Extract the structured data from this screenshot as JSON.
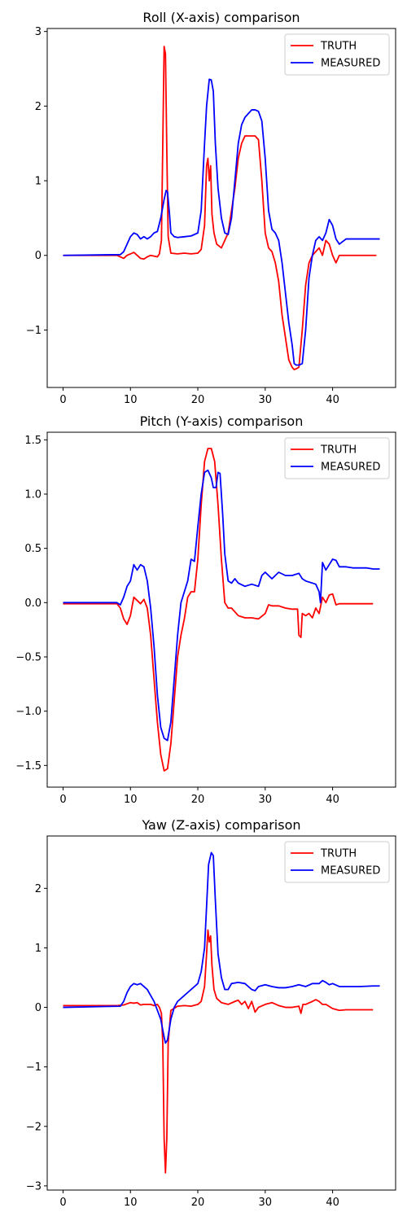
{
  "chart_data": [
    {
      "type": "line",
      "title": "Roll (X-axis) comparison",
      "xlabel": "",
      "ylabel": "",
      "xlim": [
        -2.35,
        49.35
      ],
      "ylim": [
        -1.77,
        3.04
      ],
      "xticks": [
        0,
        10,
        20,
        30,
        40
      ],
      "yticks": [
        -1,
        0,
        1,
        2,
        3
      ],
      "xtick_labels": [
        "0",
        "10",
        "20",
        "30",
        "40"
      ],
      "ytick_labels": [
        "−1",
        "0",
        "1",
        "2",
        "3"
      ],
      "legend_position": "top-right",
      "series": [
        {
          "name": "TRUTH",
          "color": "#ff0000",
          "x": [
            0,
            8,
            8.5,
            9,
            9.5,
            10,
            10.5,
            11,
            11.5,
            12,
            12.5,
            13,
            13.5,
            14,
            14.3,
            14.6,
            14.8,
            15.0,
            15.2,
            15.4,
            15.6,
            16,
            17,
            18,
            19,
            20,
            20.5,
            21,
            21.3,
            21.5,
            21.7,
            21.9,
            22.1,
            22.4,
            22.8,
            23.5,
            24.5,
            25.5,
            26.0,
            26.5,
            27.0,
            27.5,
            28,
            28.5,
            29,
            29.5,
            30,
            30.5,
            31,
            31.5,
            32,
            32.5,
            33,
            33.5,
            34,
            34.3,
            34.6,
            35,
            35.5,
            36,
            36.5,
            37,
            37.5,
            38,
            38.5,
            39,
            39.5,
            40,
            40.5,
            41,
            42,
            43,
            44,
            45,
            46,
            46.5
          ],
          "y": [
            0.0,
            0.0,
            -0.02,
            -0.04,
            0.0,
            0.02,
            0.04,
            0.0,
            -0.04,
            -0.05,
            -0.02,
            0.0,
            -0.01,
            -0.02,
            0.02,
            0.2,
            1.5,
            2.8,
            2.7,
            1.4,
            0.25,
            0.03,
            0.02,
            0.03,
            0.02,
            0.03,
            0.08,
            0.4,
            1.2,
            1.3,
            1.0,
            1.2,
            0.55,
            0.3,
            0.15,
            0.1,
            0.3,
            0.9,
            1.3,
            1.5,
            1.6,
            1.6,
            1.6,
            1.6,
            1.55,
            1.0,
            0.3,
            0.1,
            0.05,
            -0.1,
            -0.35,
            -0.8,
            -1.1,
            -1.4,
            -1.5,
            -1.53,
            -1.52,
            -1.5,
            -1.0,
            -0.4,
            -0.1,
            0.0,
            0.05,
            0.1,
            0.0,
            0.2,
            0.15,
            0.0,
            -0.1,
            0.0,
            0.0,
            0.0,
            0.0,
            0.0,
            0.0,
            0.0
          ]
        },
        {
          "name": "MEASURED",
          "color": "#0000ff",
          "x": [
            0,
            8.5,
            9,
            9.5,
            10,
            10.5,
            11,
            11.5,
            12,
            12.5,
            13,
            13.5,
            14,
            14.5,
            15,
            15.3,
            15.5,
            15.8,
            16,
            16.5,
            17,
            18,
            19,
            20,
            20.5,
            21,
            21.3,
            21.7,
            22.0,
            22.3,
            22.6,
            23,
            23.5,
            24,
            24.5,
            25,
            25.5,
            26,
            26.5,
            27,
            27.5,
            28,
            28.5,
            29,
            29.5,
            30,
            30.5,
            31,
            31.5,
            32,
            32.5,
            33,
            33.5,
            34,
            34.3,
            34.6,
            35,
            35.5,
            36,
            36.5,
            37,
            37.5,
            38,
            38.5,
            39,
            39.5,
            40,
            40.5,
            41,
            42,
            44,
            46,
            47
          ],
          "y": [
            0.0,
            0.01,
            0.05,
            0.15,
            0.25,
            0.3,
            0.28,
            0.22,
            0.25,
            0.22,
            0.25,
            0.3,
            0.32,
            0.5,
            0.75,
            0.87,
            0.85,
            0.55,
            0.3,
            0.25,
            0.24,
            0.25,
            0.26,
            0.3,
            0.6,
            1.5,
            2.0,
            2.36,
            2.35,
            2.2,
            1.5,
            0.9,
            0.5,
            0.3,
            0.28,
            0.5,
            1.0,
            1.5,
            1.75,
            1.85,
            1.9,
            1.95,
            1.95,
            1.93,
            1.8,
            1.3,
            0.6,
            0.35,
            0.3,
            0.2,
            -0.1,
            -0.5,
            -0.9,
            -1.2,
            -1.45,
            -1.47,
            -1.47,
            -1.45,
            -1.0,
            -0.3,
            0.0,
            0.2,
            0.25,
            0.2,
            0.3,
            0.48,
            0.4,
            0.22,
            0.15,
            0.22,
            0.22,
            0.22,
            0.22
          ]
        }
      ]
    },
    {
      "type": "line",
      "title": "Pitch (Y-axis) comparison",
      "xlabel": "",
      "ylabel": "",
      "xlim": [
        -2.35,
        49.35
      ],
      "ylim": [
        -1.7,
        1.57
      ],
      "xticks": [
        0,
        10,
        20,
        30,
        40
      ],
      "yticks": [
        -1.5,
        -1.0,
        -0.5,
        0.0,
        0.5,
        1.0,
        1.5
      ],
      "xtick_labels": [
        "0",
        "10",
        "20",
        "30",
        "40"
      ],
      "ytick_labels": [
        "−1.5",
        "−1.0",
        "−0.5",
        "0.0",
        "0.5",
        "1.0",
        "1.5"
      ],
      "legend_position": "top-right",
      "series": [
        {
          "name": "TRUTH",
          "color": "#ff0000",
          "x": [
            0,
            8,
            8.5,
            9,
            9.5,
            10,
            10.5,
            11,
            11.5,
            12,
            12.5,
            13,
            13.5,
            14,
            14.5,
            15,
            15.5,
            16,
            16.5,
            17,
            17.5,
            18,
            18.5,
            19,
            19.5,
            20,
            20.5,
            21,
            21.5,
            22,
            22.5,
            23,
            23.5,
            24,
            24.5,
            25,
            26,
            27,
            28,
            29,
            30,
            30.5,
            31,
            32,
            33,
            34,
            34.8,
            35.0,
            35.3,
            35.5,
            36,
            36.5,
            37,
            37.5,
            38,
            38.5,
            39,
            39.5,
            40,
            40.5,
            41,
            42,
            43,
            44,
            45,
            46
          ],
          "y": [
            -0.01,
            -0.01,
            -0.05,
            -0.15,
            -0.2,
            -0.12,
            0.05,
            0.02,
            -0.01,
            0.03,
            -0.05,
            -0.3,
            -0.7,
            -1.1,
            -1.4,
            -1.55,
            -1.53,
            -1.3,
            -0.9,
            -0.5,
            -0.3,
            -0.15,
            0.05,
            0.1,
            0.1,
            0.4,
            0.9,
            1.3,
            1.42,
            1.42,
            1.3,
            0.9,
            0.4,
            0.0,
            -0.05,
            -0.05,
            -0.12,
            -0.14,
            -0.14,
            -0.15,
            -0.1,
            -0.02,
            -0.03,
            -0.03,
            -0.05,
            -0.06,
            -0.06,
            -0.3,
            -0.32,
            -0.1,
            -0.12,
            -0.1,
            -0.14,
            -0.05,
            -0.1,
            0.05,
            0.0,
            0.07,
            0.08,
            -0.02,
            -0.01,
            -0.01,
            -0.01,
            -0.01,
            -0.01,
            -0.01
          ]
        },
        {
          "name": "MEASURED",
          "color": "#0000ff",
          "x": [
            0,
            8,
            8.5,
            9,
            9.5,
            10,
            10.5,
            11,
            11.5,
            12,
            12.5,
            13,
            13.5,
            14,
            14.5,
            15,
            15.5,
            16,
            16.5,
            17,
            17.5,
            18,
            18.5,
            19,
            19.5,
            20,
            20.5,
            21,
            21.5,
            22,
            22.3,
            22.7,
            23,
            23.3,
            23.7,
            24,
            24.5,
            25,
            25.5,
            26,
            27,
            28,
            29,
            29.5,
            30,
            31,
            32,
            33,
            34,
            35,
            35.5,
            36,
            37,
            37.5,
            38,
            38.2,
            38.5,
            39,
            39.5,
            40,
            40.5,
            41,
            42,
            43,
            44,
            45,
            46,
            47
          ],
          "y": [
            0.0,
            0.0,
            -0.02,
            0.05,
            0.15,
            0.2,
            0.35,
            0.3,
            0.35,
            0.33,
            0.2,
            -0.05,
            -0.4,
            -0.85,
            -1.15,
            -1.25,
            -1.27,
            -1.1,
            -0.7,
            -0.3,
            0.0,
            0.1,
            0.2,
            0.4,
            0.38,
            0.7,
            1.0,
            1.2,
            1.22,
            1.15,
            1.06,
            1.06,
            1.2,
            1.19,
            0.8,
            0.45,
            0.2,
            0.18,
            0.22,
            0.18,
            0.15,
            0.17,
            0.15,
            0.25,
            0.28,
            0.22,
            0.28,
            0.25,
            0.25,
            0.27,
            0.22,
            0.2,
            0.18,
            0.17,
            0.1,
            0.0,
            0.37,
            0.3,
            0.35,
            0.4,
            0.39,
            0.33,
            0.33,
            0.32,
            0.32,
            0.32,
            0.31,
            0.31
          ]
        }
      ]
    },
    {
      "type": "line",
      "title": "Yaw (Z-axis) comparison",
      "xlabel": "",
      "ylabel": "",
      "xlim": [
        -2.35,
        49.35
      ],
      "ylim": [
        -3.07,
        2.88
      ],
      "xticks": [
        0,
        10,
        20,
        30,
        40
      ],
      "yticks": [
        -3,
        -2,
        -1,
        0,
        1,
        2
      ],
      "xtick_labels": [
        "0",
        "10",
        "20",
        "30",
        "40"
      ],
      "ytick_labels": [
        "−3",
        "−2",
        "−1",
        "0",
        "1",
        "2"
      ],
      "legend_position": "top-right",
      "series": [
        {
          "name": "TRUTH",
          "color": "#ff0000",
          "x": [
            0,
            8,
            9,
            10,
            10.5,
            11,
            11.5,
            12,
            13,
            13.5,
            14,
            14.3,
            14.6,
            14.8,
            15.0,
            15.2,
            15.4,
            15.6,
            16,
            17,
            18,
            19,
            20,
            20.5,
            21,
            21.3,
            21.5,
            21.7,
            21.9,
            22.1,
            22.4,
            22.8,
            23.5,
            24.5,
            25.5,
            26,
            26.5,
            27,
            27.5,
            28,
            28.5,
            29,
            30,
            31,
            32,
            33,
            34,
            35,
            35.3,
            35.6,
            36,
            37,
            37.5,
            38,
            38.5,
            39,
            40,
            41,
            42,
            44,
            46
          ],
          "y": [
            0.03,
            0.03,
            0.04,
            0.08,
            0.07,
            0.08,
            0.04,
            0.05,
            0.05,
            0.03,
            0.05,
            0.0,
            -0.1,
            -0.6,
            -2.2,
            -2.78,
            -2.2,
            -0.6,
            -0.05,
            0.02,
            0.03,
            0.02,
            0.05,
            0.1,
            0.35,
            0.9,
            1.3,
            1.1,
            1.2,
            0.7,
            0.3,
            0.15,
            0.08,
            0.05,
            0.1,
            0.12,
            0.05,
            0.1,
            -0.02,
            0.1,
            -0.08,
            0.0,
            0.05,
            0.08,
            0.03,
            0.0,
            0.0,
            0.02,
            -0.1,
            0.05,
            0.05,
            0.1,
            0.13,
            0.1,
            0.05,
            0.05,
            -0.02,
            -0.05,
            -0.04,
            -0.04,
            -0.04
          ]
        },
        {
          "name": "MEASURED",
          "color": "#0000ff",
          "x": [
            0,
            8.5,
            9,
            9.5,
            10,
            10.5,
            11,
            11.5,
            12,
            12.5,
            13,
            13.5,
            14,
            14.5,
            15,
            15.2,
            15.5,
            16,
            16.5,
            17,
            18,
            19,
            20,
            20.5,
            21,
            21.3,
            21.6,
            22,
            22.3,
            22.6,
            23,
            23.5,
            24,
            24.5,
            25,
            26,
            27,
            28,
            28.5,
            29,
            30,
            31,
            32,
            33,
            34,
            35,
            36,
            37,
            38,
            38.5,
            39,
            39.5,
            40,
            41,
            42,
            44,
            46,
            47
          ],
          "y": [
            0.0,
            0.02,
            0.1,
            0.25,
            0.35,
            0.4,
            0.38,
            0.4,
            0.35,
            0.3,
            0.2,
            0.1,
            -0.05,
            -0.2,
            -0.5,
            -0.6,
            -0.55,
            -0.2,
            0.0,
            0.1,
            0.2,
            0.3,
            0.4,
            0.6,
            1.0,
            1.7,
            2.4,
            2.6,
            2.55,
            1.8,
            0.9,
            0.5,
            0.3,
            0.3,
            0.4,
            0.42,
            0.4,
            0.3,
            0.28,
            0.35,
            0.38,
            0.35,
            0.33,
            0.33,
            0.35,
            0.38,
            0.35,
            0.4,
            0.4,
            0.45,
            0.42,
            0.38,
            0.4,
            0.35,
            0.35,
            0.35,
            0.36,
            0.36
          ]
        }
      ]
    }
  ]
}
